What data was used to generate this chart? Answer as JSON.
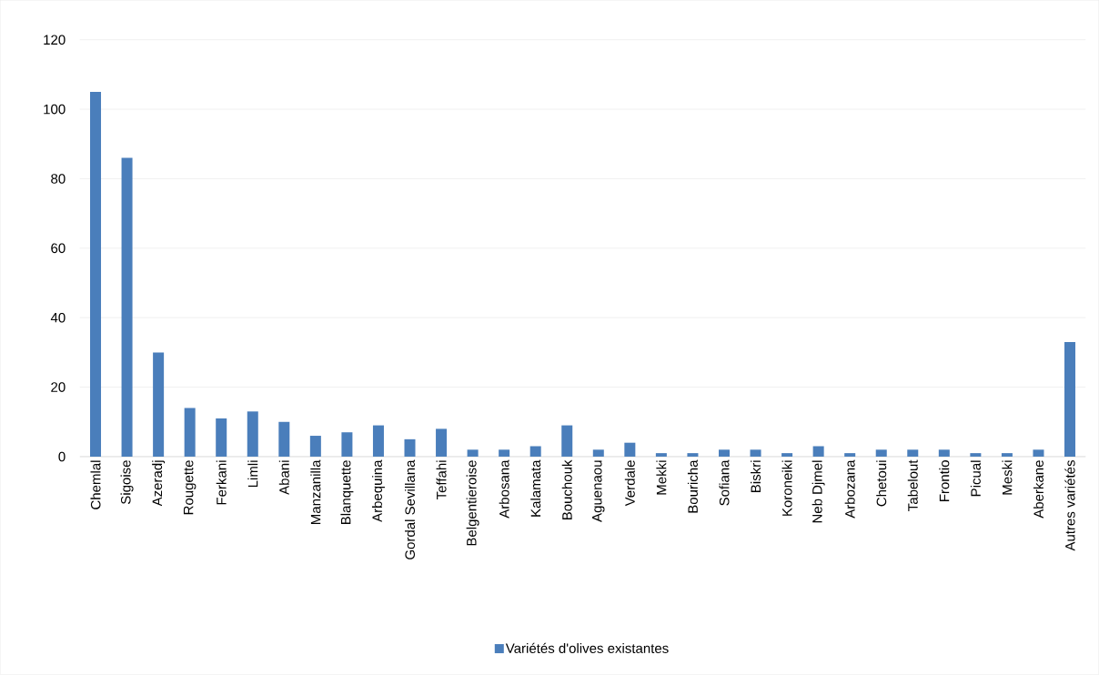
{
  "chart_data": {
    "type": "bar",
    "categories": [
      "Chemlal",
      "Sigoise",
      "Azeradj",
      "Rougette",
      "Ferkani",
      "Limli",
      "Abani",
      "Manzanilla",
      "Blanquette",
      "Arbequina",
      "Gordal Sevillana",
      "Teffahi",
      "Belgentieroise",
      "Arbosana",
      "Kalamata",
      "Bouchouk",
      "Aguenaou",
      "Verdale",
      "Mekki",
      "Bouricha",
      "Sofiana",
      "Biskri",
      "Koroneiki",
      "Neb Djmel",
      "Arbozana",
      "Chetoui",
      "Tabelout",
      "Frontio",
      "Picual",
      "Meski",
      "Aberkane",
      "Autres variétés"
    ],
    "series": [
      {
        "name": "Variétés d'olives existantes",
        "color": "#4a7ebb",
        "values": [
          105,
          86,
          30,
          14,
          11,
          13,
          10,
          6,
          7,
          9,
          5,
          8,
          2,
          2,
          3,
          9,
          2,
          4,
          1,
          1,
          2,
          2,
          1,
          3,
          1,
          2,
          2,
          2,
          1,
          1,
          2,
          33
        ]
      }
    ],
    "ylim": [
      0,
      120
    ],
    "yticks": [
      0,
      20,
      40,
      60,
      80,
      100,
      120
    ],
    "grid": "y",
    "legend": "bottom"
  }
}
